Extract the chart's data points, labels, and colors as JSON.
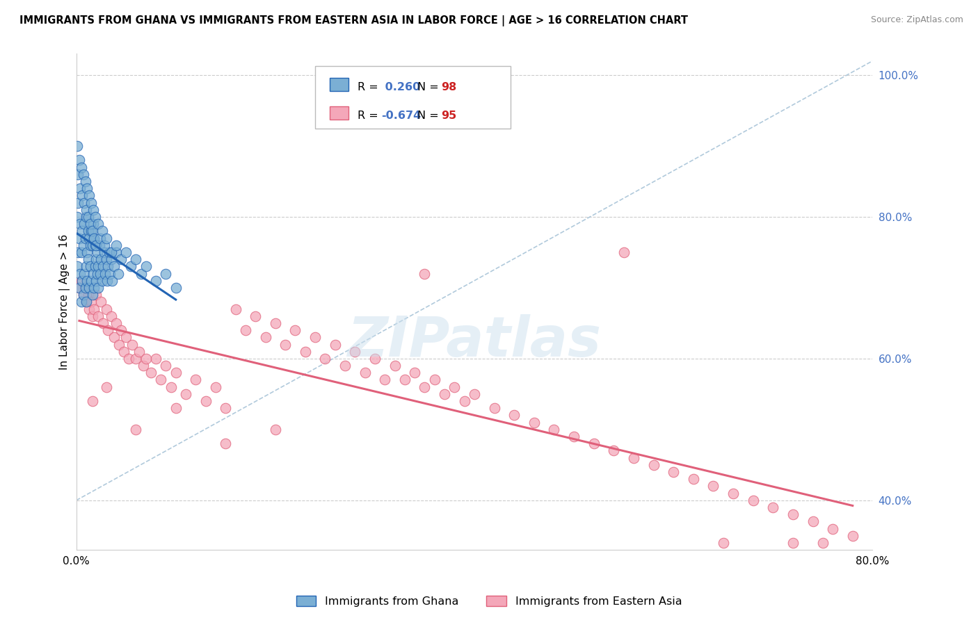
{
  "title": "IMMIGRANTS FROM GHANA VS IMMIGRANTS FROM EASTERN ASIA IN LABOR FORCE | AGE > 16 CORRELATION CHART",
  "source": "Source: ZipAtlas.com",
  "ylabel": "In Labor Force | Age > 16",
  "xmin": 0.0,
  "xmax": 0.8,
  "ymin": 0.33,
  "ymax": 1.03,
  "ghana_R": 0.26,
  "ghana_N": 98,
  "eastern_asia_R": -0.674,
  "eastern_asia_N": 95,
  "ghana_color": "#7bafd4",
  "eastern_asia_color": "#f4a7b9",
  "ghana_line_color": "#2264b4",
  "eastern_asia_line_color": "#e0607a",
  "diagonal_line_color": "#a8c4d8",
  "watermark": "ZIPatlas",
  "yticks": [
    0.4,
    0.6,
    0.8,
    1.0
  ],
  "ytick_labels": [
    "40.0%",
    "60.0%",
    "80.0%",
    "100.0%"
  ],
  "ghana_points_x": [
    0.001,
    0.001,
    0.002,
    0.002,
    0.003,
    0.003,
    0.004,
    0.004,
    0.005,
    0.005,
    0.006,
    0.006,
    0.007,
    0.007,
    0.008,
    0.008,
    0.009,
    0.009,
    0.01,
    0.01,
    0.01,
    0.011,
    0.011,
    0.012,
    0.012,
    0.013,
    0.013,
    0.014,
    0.014,
    0.015,
    0.015,
    0.016,
    0.016,
    0.017,
    0.017,
    0.018,
    0.018,
    0.019,
    0.019,
    0.02,
    0.02,
    0.021,
    0.021,
    0.022,
    0.022,
    0.023,
    0.024,
    0.025,
    0.026,
    0.027,
    0.028,
    0.029,
    0.03,
    0.031,
    0.032,
    0.033,
    0.034,
    0.035,
    0.036,
    0.038,
    0.04,
    0.042,
    0.001,
    0.002,
    0.003,
    0.004,
    0.005,
    0.006,
    0.007,
    0.008,
    0.009,
    0.01,
    0.011,
    0.012,
    0.013,
    0.014,
    0.015,
    0.016,
    0.017,
    0.018,
    0.019,
    0.02,
    0.022,
    0.024,
    0.026,
    0.028,
    0.03,
    0.035,
    0.04,
    0.045,
    0.05,
    0.055,
    0.06,
    0.065,
    0.07,
    0.08,
    0.09,
    0.1
  ],
  "ghana_points_y": [
    0.73,
    0.8,
    0.75,
    0.82,
    0.7,
    0.77,
    0.72,
    0.79,
    0.68,
    0.75,
    0.71,
    0.78,
    0.69,
    0.76,
    0.72,
    0.79,
    0.7,
    0.77,
    0.73,
    0.8,
    0.68,
    0.75,
    0.71,
    0.74,
    0.78,
    0.7,
    0.77,
    0.73,
    0.76,
    0.71,
    0.78,
    0.69,
    0.76,
    0.72,
    0.79,
    0.7,
    0.77,
    0.73,
    0.76,
    0.71,
    0.74,
    0.72,
    0.75,
    0.7,
    0.73,
    0.76,
    0.72,
    0.74,
    0.71,
    0.73,
    0.75,
    0.72,
    0.74,
    0.71,
    0.73,
    0.75,
    0.72,
    0.74,
    0.71,
    0.73,
    0.75,
    0.72,
    0.9,
    0.86,
    0.88,
    0.84,
    0.87,
    0.83,
    0.86,
    0.82,
    0.85,
    0.81,
    0.84,
    0.8,
    0.83,
    0.79,
    0.82,
    0.78,
    0.81,
    0.77,
    0.8,
    0.76,
    0.79,
    0.77,
    0.78,
    0.76,
    0.77,
    0.75,
    0.76,
    0.74,
    0.75,
    0.73,
    0.74,
    0.72,
    0.73,
    0.71,
    0.72,
    0.7
  ],
  "eastern_asia_points_x": [
    0.003,
    0.005,
    0.007,
    0.009,
    0.01,
    0.012,
    0.013,
    0.015,
    0.016,
    0.018,
    0.02,
    0.022,
    0.025,
    0.027,
    0.03,
    0.032,
    0.035,
    0.038,
    0.04,
    0.043,
    0.045,
    0.048,
    0.05,
    0.053,
    0.056,
    0.06,
    0.063,
    0.067,
    0.07,
    0.075,
    0.08,
    0.085,
    0.09,
    0.095,
    0.1,
    0.11,
    0.12,
    0.13,
    0.14,
    0.15,
    0.16,
    0.17,
    0.18,
    0.19,
    0.2,
    0.21,
    0.22,
    0.23,
    0.24,
    0.25,
    0.26,
    0.27,
    0.28,
    0.29,
    0.3,
    0.31,
    0.32,
    0.33,
    0.34,
    0.35,
    0.36,
    0.37,
    0.38,
    0.39,
    0.4,
    0.42,
    0.44,
    0.46,
    0.48,
    0.5,
    0.52,
    0.54,
    0.56,
    0.58,
    0.6,
    0.62,
    0.64,
    0.66,
    0.68,
    0.7,
    0.72,
    0.74,
    0.76,
    0.78,
    0.016,
    0.03,
    0.06,
    0.1,
    0.15,
    0.2,
    0.35,
    0.55,
    0.65,
    0.72,
    0.75
  ],
  "eastern_asia_points_y": [
    0.7,
    0.71,
    0.69,
    0.7,
    0.68,
    0.69,
    0.67,
    0.68,
    0.66,
    0.67,
    0.69,
    0.66,
    0.68,
    0.65,
    0.67,
    0.64,
    0.66,
    0.63,
    0.65,
    0.62,
    0.64,
    0.61,
    0.63,
    0.6,
    0.62,
    0.6,
    0.61,
    0.59,
    0.6,
    0.58,
    0.6,
    0.57,
    0.59,
    0.56,
    0.58,
    0.55,
    0.57,
    0.54,
    0.56,
    0.53,
    0.67,
    0.64,
    0.66,
    0.63,
    0.65,
    0.62,
    0.64,
    0.61,
    0.63,
    0.6,
    0.62,
    0.59,
    0.61,
    0.58,
    0.6,
    0.57,
    0.59,
    0.57,
    0.58,
    0.56,
    0.57,
    0.55,
    0.56,
    0.54,
    0.55,
    0.53,
    0.52,
    0.51,
    0.5,
    0.49,
    0.48,
    0.47,
    0.46,
    0.45,
    0.44,
    0.43,
    0.42,
    0.41,
    0.4,
    0.39,
    0.38,
    0.37,
    0.36,
    0.35,
    0.54,
    0.56,
    0.5,
    0.53,
    0.48,
    0.5,
    0.72,
    0.75,
    0.34,
    0.34,
    0.34
  ]
}
